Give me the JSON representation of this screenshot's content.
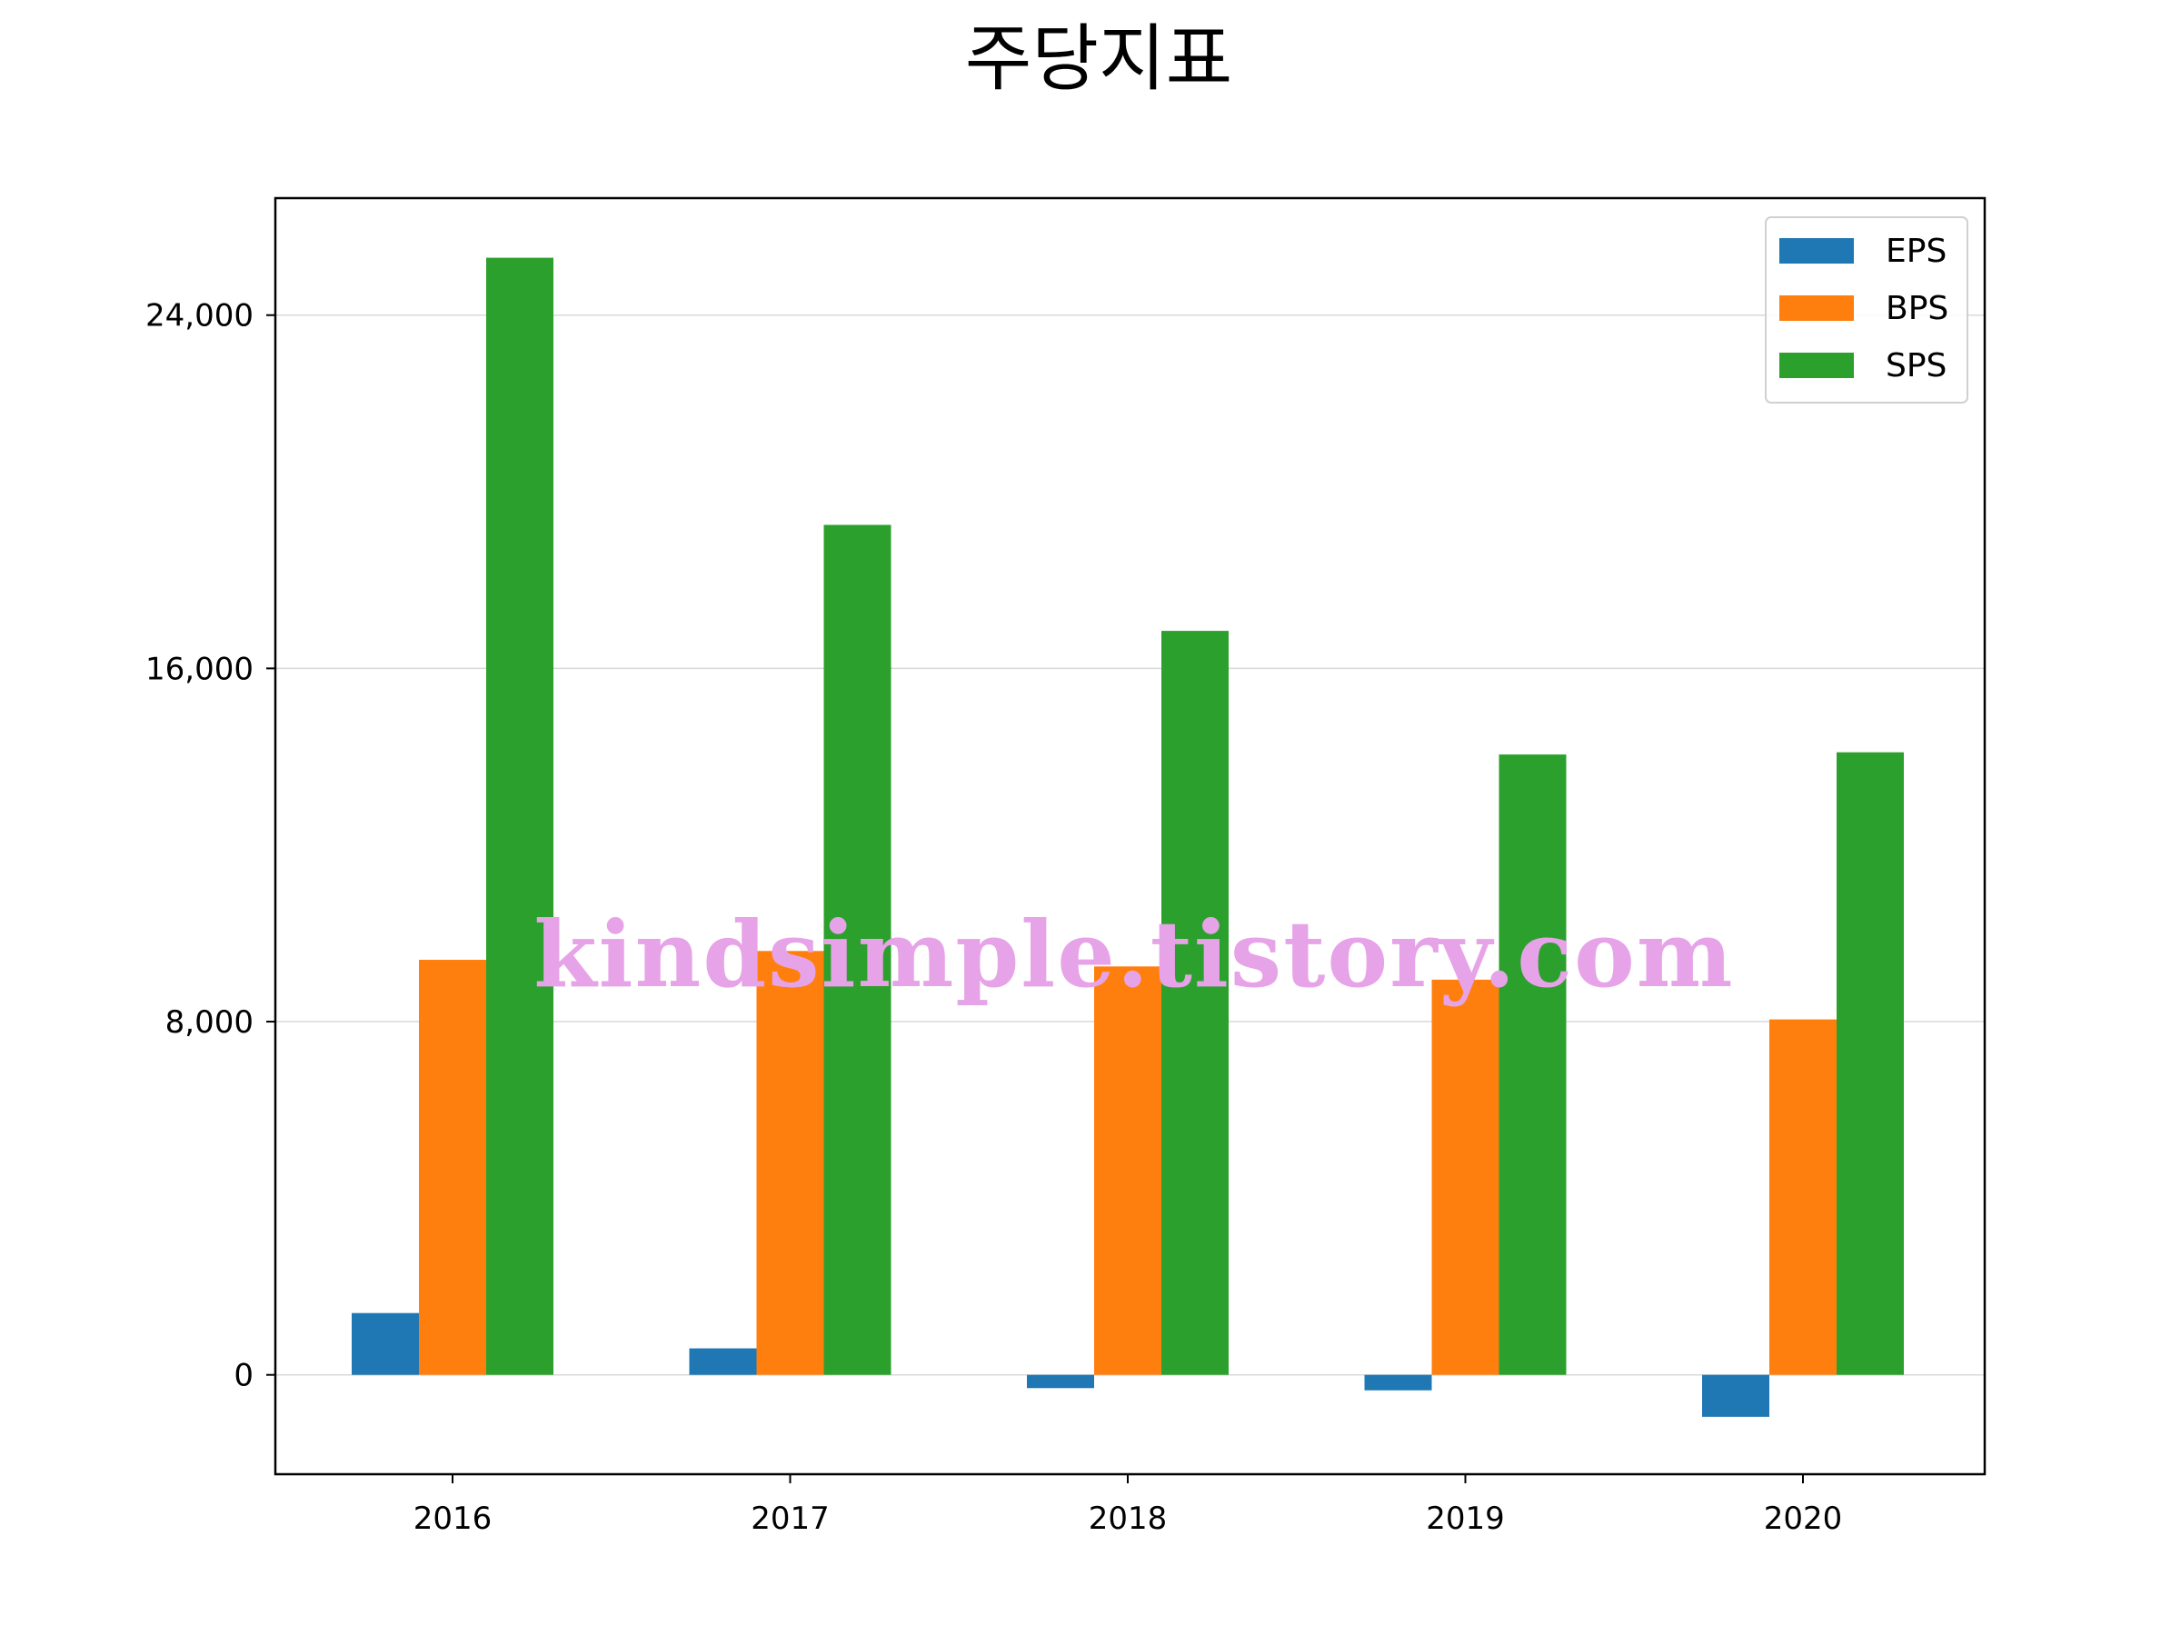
{
  "title": "주당지표",
  "watermark": "kindsimple.tistory.com",
  "chart_data": {
    "type": "bar",
    "title": "주당지표",
    "xlabel": "",
    "ylabel": "",
    "categories": [
      "2016",
      "2017",
      "2018",
      "2019",
      "2020"
    ],
    "series": [
      {
        "name": "EPS",
        "color": "#1f77b4",
        "values": [
          1400,
          600,
          -300,
          -350,
          -950
        ]
      },
      {
        "name": "BPS",
        "color": "#ff7f0e",
        "values": [
          9400,
          9600,
          9250,
          8950,
          8050
        ]
      },
      {
        "name": "SPS",
        "color": "#2ca02c",
        "values": [
          25300,
          19250,
          16850,
          14050,
          14100
        ]
      }
    ],
    "ylim": [
      -2250,
      26650
    ],
    "yticks": [
      0,
      8000,
      16000,
      24000
    ],
    "ytick_labels": [
      "0",
      "8,000",
      "16,000",
      "24,000"
    ],
    "grid": "y",
    "legend": "top-right"
  }
}
